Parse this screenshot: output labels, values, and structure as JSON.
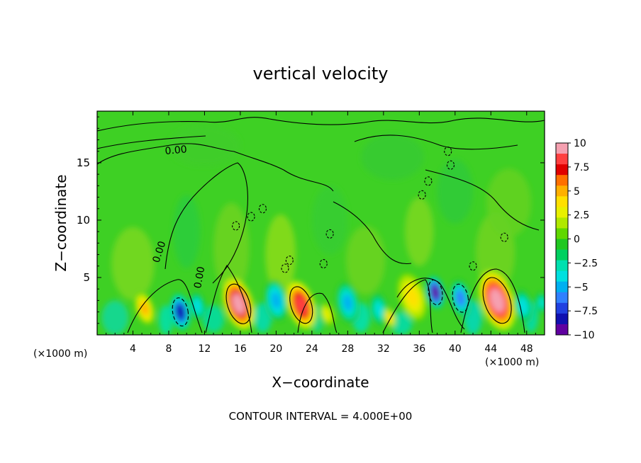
{
  "chart_data": {
    "type": "heatmap",
    "title": "vertical velocity",
    "xlabel": "X−coordinate",
    "ylabel": "Z−coordinate",
    "x_unit_left": "(×1000 m)",
    "x_unit_right": "(×1000 m)",
    "xlim": [
      0,
      50
    ],
    "ylim": [
      0,
      19.5
    ],
    "x_ticks": [
      4,
      8,
      12,
      16,
      20,
      24,
      28,
      32,
      36,
      40,
      44,
      48
    ],
    "x_tick_labels": [
      "4",
      "8",
      "12",
      "16",
      "20",
      "24",
      "28",
      "32",
      "36",
      "40",
      "44",
      "48"
    ],
    "y_ticks": [
      5,
      10,
      15
    ],
    "y_tick_labels": [
      "5",
      "10",
      "15"
    ],
    "contour_label": "0.00",
    "footer": "CONTOUR INTERVAL = 4.000E+00",
    "colorbar": {
      "range": [
        -10,
        10
      ],
      "tick_values": [
        10,
        7.5,
        5,
        2.5,
        0,
        -2.5,
        -5,
        -7.5,
        -10
      ],
      "tick_labels": [
        "10",
        "7.5",
        "5",
        "2.5",
        "0",
        "−2.5",
        "−5",
        "−7.5",
        "−10"
      ],
      "colors": [
        "#f5a0b0",
        "#ff4040",
        "#e00000",
        "#ff7000",
        "#ffb000",
        "#ffe000",
        "#e8f000",
        "#b0e800",
        "#60d800",
        "#20c820",
        "#00d060",
        "#00e0b0",
        "#00e0e0",
        "#00b0f0",
        "#3080ff",
        "#2040e0",
        "#1010b0",
        "#6000a0"
      ]
    },
    "features": [
      {
        "x": 5.3,
        "z": 2.3,
        "w": 0.8,
        "sign": 1,
        "peak": 4.5
      },
      {
        "x": 9.3,
        "z": 2.0,
        "w": 0.9,
        "sign": -1,
        "peak": 8.0
      },
      {
        "x": 11.2,
        "z": 2.5,
        "w": 0.7,
        "sign": -1,
        "peak": 4.0
      },
      {
        "x": 15.8,
        "z": 2.7,
        "w": 1.3,
        "sign": 1,
        "peak": 9.0
      },
      {
        "x": 20.0,
        "z": 3.0,
        "w": 1.0,
        "sign": -1,
        "peak": 5.0
      },
      {
        "x": 22.8,
        "z": 2.6,
        "w": 1.2,
        "sign": 1,
        "peak": 8.5
      },
      {
        "x": 25.7,
        "z": 1.8,
        "w": 0.6,
        "sign": 1,
        "peak": 3.0
      },
      {
        "x": 28.0,
        "z": 2.8,
        "w": 1.0,
        "sign": -1,
        "peak": 4.5
      },
      {
        "x": 31.5,
        "z": 2.2,
        "w": 0.8,
        "sign": -1,
        "peak": 3.5
      },
      {
        "x": 32.7,
        "z": 1.5,
        "w": 0.5,
        "sign": 1,
        "peak": 4.0
      },
      {
        "x": 35.2,
        "z": 3.3,
        "w": 1.2,
        "sign": 1,
        "peak": 3.5
      },
      {
        "x": 37.8,
        "z": 3.7,
        "w": 0.8,
        "sign": -1,
        "peak": 9.0
      },
      {
        "x": 40.6,
        "z": 3.2,
        "w": 0.9,
        "sign": -1,
        "peak": 6.5
      },
      {
        "x": 44.7,
        "z": 3.0,
        "w": 1.5,
        "sign": 1,
        "peak": 9.5
      },
      {
        "x": 47.6,
        "z": 2.5,
        "w": 0.8,
        "sign": -1,
        "peak": 4.0
      },
      {
        "x": 49.7,
        "z": 2.8,
        "w": 0.5,
        "sign": -1,
        "peak": 3.5
      }
    ]
  }
}
